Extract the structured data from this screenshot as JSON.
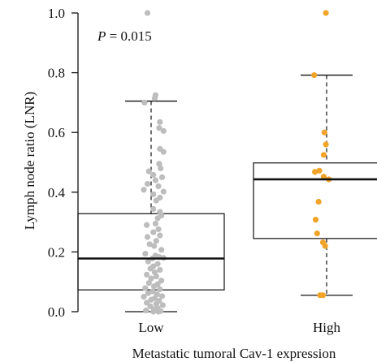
{
  "chart_data": {
    "type": "boxplot",
    "xlabel": "Metastatic tumoral Cav-1 expression",
    "ylabel": "Lymph node ratio (LNR)",
    "ylim": [
      0,
      1
    ],
    "y_ticks": [
      {
        "value": 0.0,
        "label": "0.0"
      },
      {
        "value": 0.2,
        "label": "0.2"
      },
      {
        "value": 0.4,
        "label": "0.4"
      },
      {
        "value": 0.6,
        "label": "0.6"
      },
      {
        "value": 0.8,
        "label": "0.8"
      },
      {
        "value": 1.0,
        "label": "1.0"
      }
    ],
    "annotation": {
      "italic": "P",
      "rest": " = 0.015"
    },
    "groups": [
      {
        "category": "Low",
        "color": "#bdbdbd",
        "box": {
          "whisker_low": 0.0,
          "q1": 0.073,
          "median": 0.178,
          "q3": 0.328,
          "whisker_high": 0.705
        },
        "points": [
          [
            -0.05,
            1.0
          ],
          [
            0.06,
            0.725
          ],
          [
            0.05,
            0.715
          ],
          [
            -0.09,
            0.7
          ],
          [
            0.12,
            0.635
          ],
          [
            0.17,
            0.605
          ],
          [
            0.11,
            0.615
          ],
          [
            0.12,
            0.545
          ],
          [
            0.17,
            0.535
          ],
          [
            0.11,
            0.495
          ],
          [
            0.13,
            0.48
          ],
          [
            -0.03,
            0.47
          ],
          [
            0.15,
            0.45
          ],
          [
            0.03,
            0.458
          ],
          [
            0.06,
            0.44
          ],
          [
            -0.05,
            0.428
          ],
          [
            0.1,
            0.42
          ],
          [
            0.17,
            0.402
          ],
          [
            -0.1,
            0.408
          ],
          [
            0.03,
            0.393
          ],
          [
            0.12,
            0.382
          ],
          [
            0.07,
            0.372
          ],
          [
            0.03,
            0.344
          ],
          [
            0.12,
            0.334
          ],
          [
            0.14,
            0.322
          ],
          [
            0.09,
            0.313
          ],
          [
            0.06,
            0.295
          ],
          [
            -0.06,
            0.29
          ],
          [
            0.1,
            0.276
          ],
          [
            0.03,
            0.266
          ],
          [
            0.12,
            0.255
          ],
          [
            -0.05,
            0.25
          ],
          [
            0.07,
            0.237
          ],
          [
            -0.02,
            0.226
          ],
          [
            0.04,
            0.22
          ],
          [
            0.14,
            0.207
          ],
          [
            -0.08,
            0.194
          ],
          [
            0.06,
            0.188
          ],
          [
            0.11,
            0.183
          ],
          [
            0.02,
            0.178
          ],
          [
            0.17,
            0.18
          ],
          [
            -0.04,
            0.168
          ],
          [
            0.09,
            0.16
          ],
          [
            0.03,
            0.152
          ],
          [
            -0.01,
            0.144
          ],
          [
            0.12,
            0.14
          ],
          [
            0.05,
            0.132
          ],
          [
            -0.06,
            0.124
          ],
          [
            0.07,
            0.118
          ],
          [
            0.0,
            0.111
          ],
          [
            0.14,
            0.104
          ],
          [
            -0.03,
            0.096
          ],
          [
            0.09,
            0.092
          ],
          [
            0.04,
            0.085
          ],
          [
            -0.08,
            0.079
          ],
          [
            0.12,
            0.075
          ],
          [
            0.02,
            0.068
          ],
          [
            -0.04,
            0.062
          ],
          [
            0.08,
            0.058
          ],
          [
            0.15,
            0.052
          ],
          [
            -0.1,
            0.05
          ],
          [
            0.05,
            0.045
          ],
          [
            0.0,
            0.04
          ],
          [
            0.11,
            0.036
          ],
          [
            -0.06,
            0.03
          ],
          [
            0.07,
            0.026
          ],
          [
            0.16,
            0.022
          ],
          [
            -0.01,
            0.018
          ],
          [
            0.09,
            0.012
          ],
          [
            0.04,
            0.008
          ],
          [
            -0.07,
            0.004
          ],
          [
            0.13,
            0.002
          ],
          [
            0.03,
            0.0
          ],
          [
            0.1,
            0.0
          ]
        ]
      },
      {
        "category": "High",
        "color": "#f0a52a",
        "box": {
          "whisker_low": 0.055,
          "q1": 0.245,
          "median": 0.443,
          "q3": 0.498,
          "whisker_high": 0.792
        },
        "points": [
          [
            -0.01,
            1.0
          ],
          [
            -0.17,
            0.792
          ],
          [
            -0.03,
            0.6
          ],
          [
            -0.04,
            0.525
          ],
          [
            -0.01,
            0.56
          ],
          [
            -0.16,
            0.468
          ],
          [
            -0.1,
            0.472
          ],
          [
            -0.04,
            0.452
          ],
          [
            0.03,
            0.443
          ],
          [
            -0.11,
            0.368
          ],
          [
            -0.15,
            0.308
          ],
          [
            -0.13,
            0.262
          ],
          [
            -0.05,
            0.232
          ],
          [
            -0.02,
            0.22
          ],
          [
            -0.09,
            0.055
          ],
          [
            -0.05,
            0.055
          ]
        ]
      }
    ]
  }
}
